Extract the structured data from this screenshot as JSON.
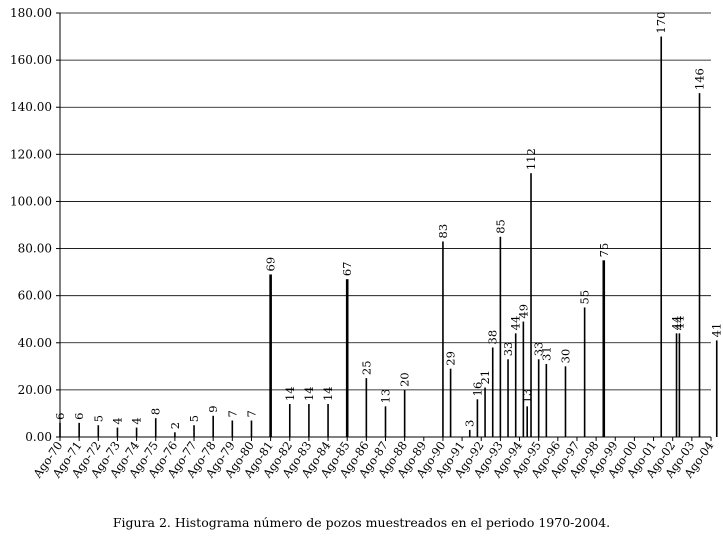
{
  "caption": "Figura 2. Histograma número de pozos muestreados en el periodo 1970-2004.",
  "chart_data": {
    "type": "bar",
    "title": "",
    "xlabel": "",
    "ylabel": "",
    "ylim": [
      0,
      180
    ],
    "yticks": [
      "0.00",
      "20.00",
      "40.00",
      "60.00",
      "80.00",
      "100.00",
      "120.00",
      "140.00",
      "160.00",
      "180.00"
    ],
    "grid": "horizontal",
    "categories": [
      "Ago-70",
      "Ago-71",
      "Ago-72",
      "Ago-73",
      "Ago-74",
      "Ago-75",
      "Ago-76",
      "Ago-77",
      "Ago-78",
      "Ago-79",
      "Ago-80",
      "Ago-81",
      "Ago-82",
      "Ago-83",
      "Ago-84",
      "Ago-85",
      "Ago-86",
      "Ago-87",
      "Ago-88",
      "Ago-89",
      "Ago-90",
      "Ago-91",
      "Ago-92",
      "Ago-93",
      "Ago-94",
      "Ago-95",
      "Ago-96",
      "Ago-97",
      "Ago-98",
      "Ago-99",
      "Ago-00",
      "Ago-01",
      "Ago-02",
      "Ago-03",
      "Ago-04"
    ],
    "bars": [
      {
        "x": 0.0,
        "value": 6
      },
      {
        "x": 1.0,
        "value": 6
      },
      {
        "x": 2.0,
        "value": 5
      },
      {
        "x": 3.0,
        "value": 4
      },
      {
        "x": 4.0,
        "value": 4
      },
      {
        "x": 5.0,
        "value": 8
      },
      {
        "x": 6.0,
        "value": 2
      },
      {
        "x": 7.0,
        "value": 5
      },
      {
        "x": 8.0,
        "value": 9
      },
      {
        "x": 9.0,
        "value": 7
      },
      {
        "x": 10.0,
        "value": 7
      },
      {
        "x": 11.0,
        "value": 69
      },
      {
        "x": 12.0,
        "value": 14
      },
      {
        "x": 13.0,
        "value": 14
      },
      {
        "x": 14.0,
        "value": 14
      },
      {
        "x": 15.0,
        "value": 67
      },
      {
        "x": 16.0,
        "value": 25
      },
      {
        "x": 17.0,
        "value": 13
      },
      {
        "x": 18.0,
        "value": 20
      },
      {
        "x": 20.0,
        "value": 83
      },
      {
        "x": 20.4,
        "value": 29
      },
      {
        "x": 21.4,
        "value": 3
      },
      {
        "x": 21.8,
        "value": 16
      },
      {
        "x": 22.2,
        "value": 21
      },
      {
        "x": 22.6,
        "value": 38
      },
      {
        "x": 23.0,
        "value": 85
      },
      {
        "x": 23.4,
        "value": 33
      },
      {
        "x": 23.8,
        "value": 44
      },
      {
        "x": 24.2,
        "value": 49
      },
      {
        "x": 24.4,
        "value": 13
      },
      {
        "x": 24.6,
        "value": 112
      },
      {
        "x": 25.0,
        "value": 33
      },
      {
        "x": 25.4,
        "value": 31
      },
      {
        "x": 26.4,
        "value": 30
      },
      {
        "x": 27.4,
        "value": 55
      },
      {
        "x": 28.4,
        "value": 75
      },
      {
        "x": 31.4,
        "value": 170
      },
      {
        "x": 32.2,
        "value": 44
      },
      {
        "x": 32.35,
        "value": 44
      },
      {
        "x": 33.4,
        "value": 146
      },
      {
        "x": 34.3,
        "value": 41
      }
    ]
  }
}
